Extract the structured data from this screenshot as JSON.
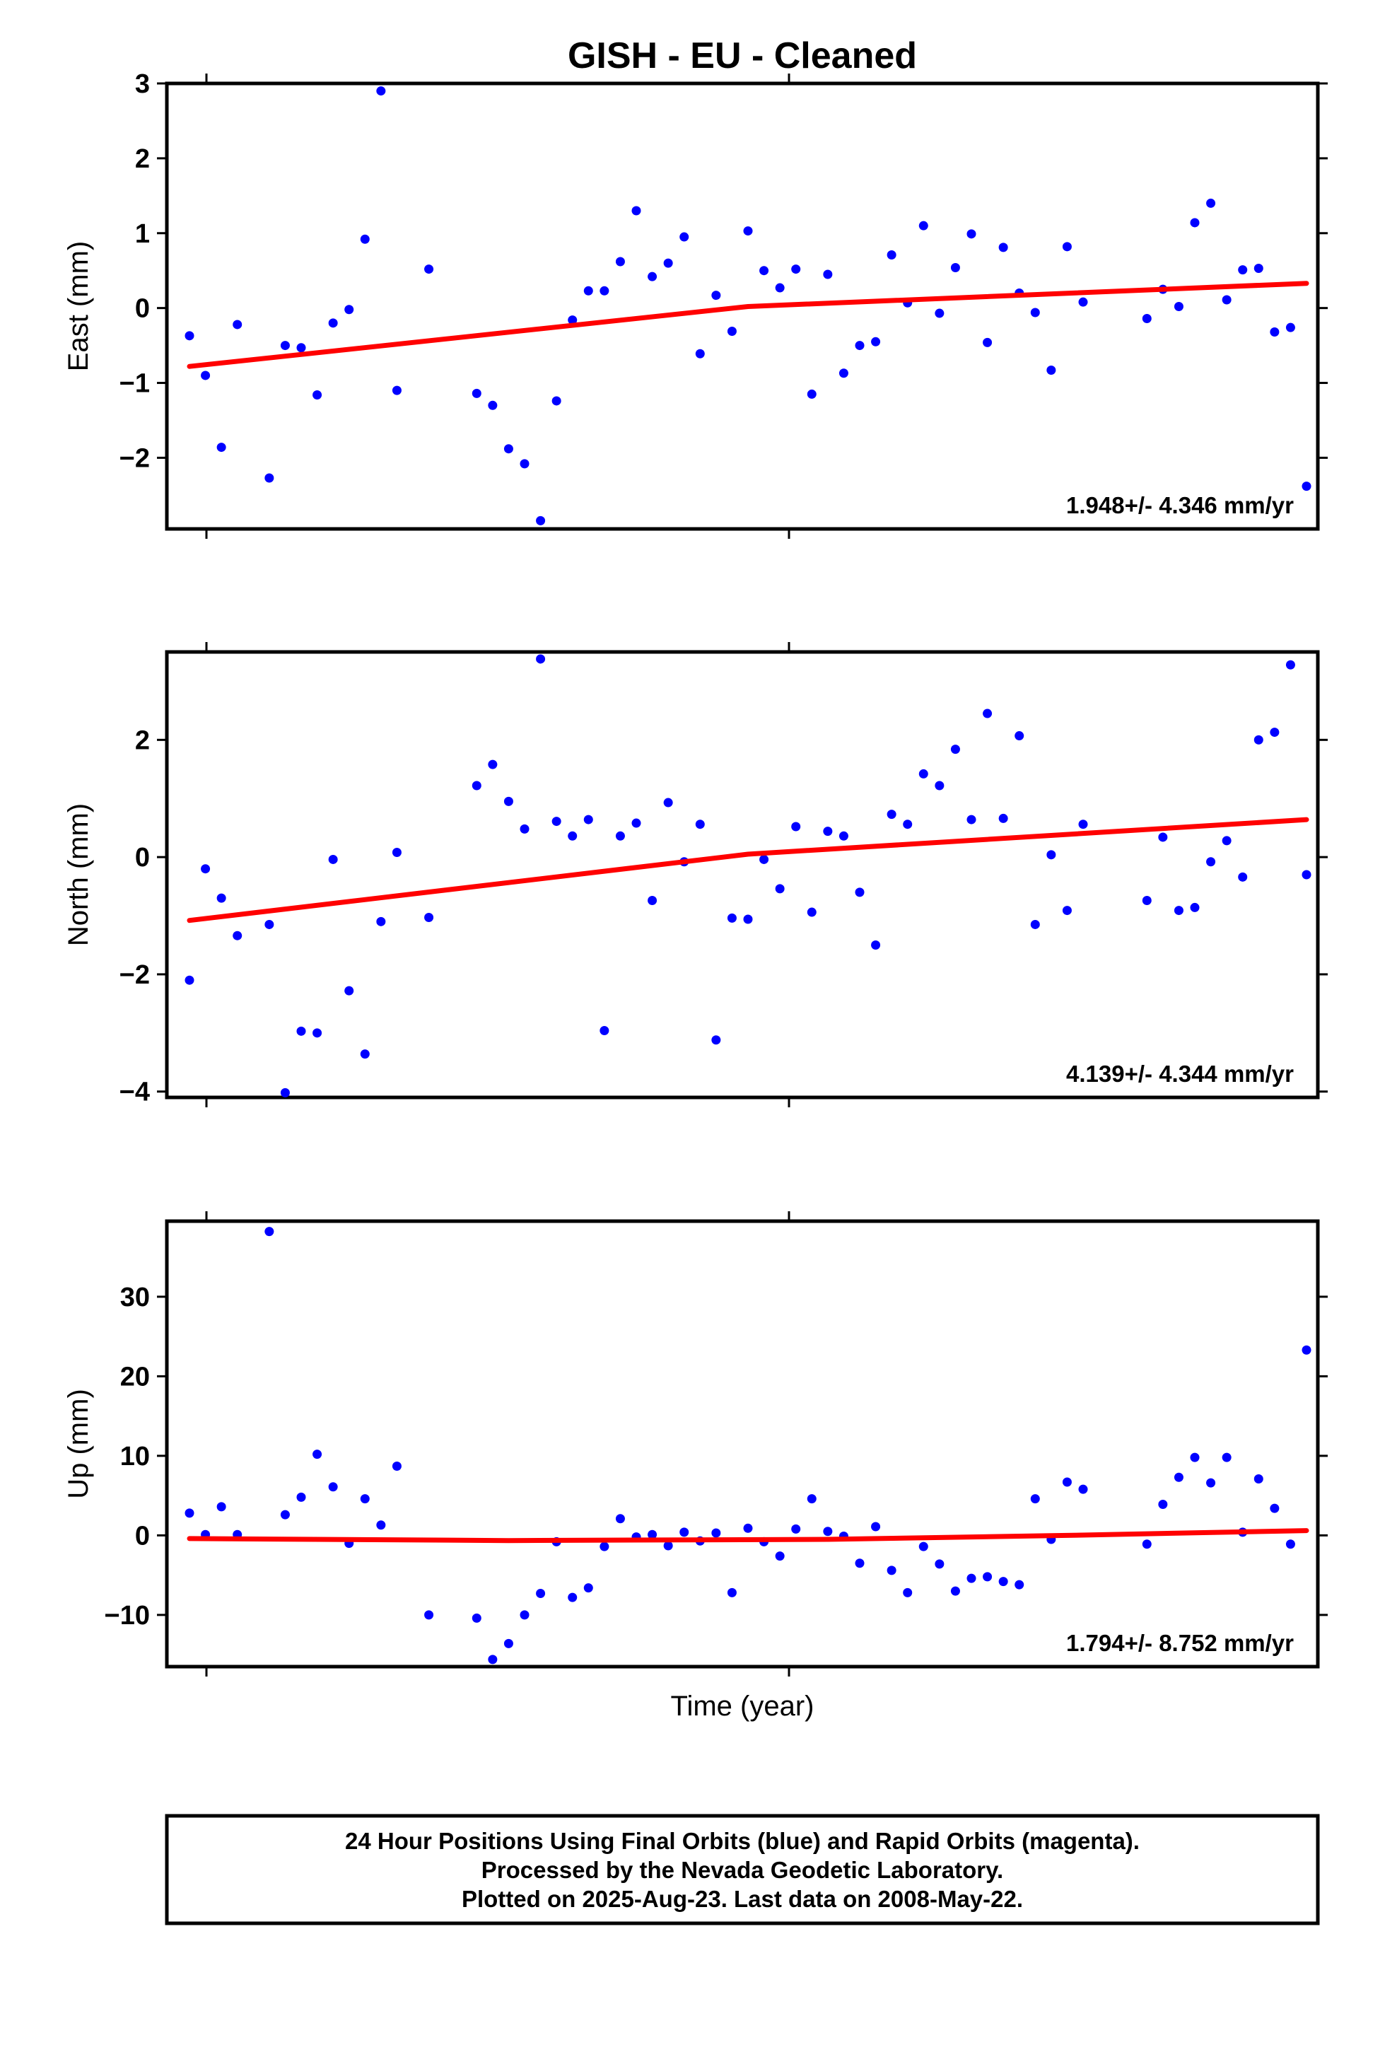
{
  "title": "GISH  - EU - Cleaned",
  "colors": {
    "points": "#0000ff",
    "trend": "#ff0000",
    "axes": "#000000"
  },
  "chart_data": [
    {
      "type": "scatter",
      "ylabel": "East (mm)",
      "ylim": [
        -2.95,
        3.0
      ],
      "yticks": [
        3,
        2,
        1,
        0,
        -1,
        -2
      ],
      "ytick_labels": [
        "3",
        "2",
        "1",
        "0",
        "−1",
        "−2"
      ],
      "rate_label": "1.948+/- 4.346 mm/yr",
      "points": [
        [
          0,
          -0.37
        ],
        [
          1,
          -0.9
        ],
        [
          2,
          -1.86
        ],
        [
          3,
          -0.22
        ],
        [
          5,
          -2.27
        ],
        [
          6,
          -0.5
        ],
        [
          7,
          -0.53
        ],
        [
          8,
          -1.16
        ],
        [
          9,
          -0.2
        ],
        [
          10,
          -0.02
        ],
        [
          11,
          0.92
        ],
        [
          12,
          2.9
        ],
        [
          13,
          -1.1
        ],
        [
          15,
          0.52
        ],
        [
          18,
          -1.14
        ],
        [
          19,
          -1.3
        ],
        [
          20,
          -1.88
        ],
        [
          21,
          -2.08
        ],
        [
          22,
          -2.84
        ],
        [
          23,
          -1.24
        ],
        [
          24,
          -0.16
        ],
        [
          25,
          0.23
        ],
        [
          26,
          0.23
        ],
        [
          27,
          0.62
        ],
        [
          28,
          1.3
        ],
        [
          29,
          0.42
        ],
        [
          30,
          0.6
        ],
        [
          31,
          0.95
        ],
        [
          32,
          -0.61
        ],
        [
          33,
          0.17
        ],
        [
          34,
          -0.31
        ],
        [
          35,
          1.03
        ],
        [
          36,
          0.5
        ],
        [
          37,
          0.27
        ],
        [
          38,
          0.52
        ],
        [
          39,
          -1.15
        ],
        [
          40,
          0.45
        ],
        [
          41,
          -0.87
        ],
        [
          42,
          -0.5
        ],
        [
          43,
          -0.45
        ],
        [
          44,
          0.71
        ],
        [
          45,
          0.07
        ],
        [
          46,
          1.1
        ],
        [
          47,
          -0.07
        ],
        [
          48,
          0.54
        ],
        [
          49,
          0.99
        ],
        [
          50,
          -0.46
        ],
        [
          51,
          0.81
        ],
        [
          52,
          0.2
        ],
        [
          53,
          -0.06
        ],
        [
          54,
          -0.83
        ],
        [
          55,
          0.82
        ],
        [
          56,
          0.08
        ],
        [
          60,
          -0.14
        ],
        [
          61,
          0.25
        ],
        [
          62,
          0.02
        ],
        [
          63,
          1.14
        ],
        [
          64,
          1.4
        ],
        [
          65,
          0.11
        ],
        [
          66,
          0.51
        ],
        [
          67,
          0.53
        ],
        [
          68,
          -0.32
        ],
        [
          69,
          -0.26
        ],
        [
          70,
          -2.38
        ]
      ],
      "trend": [
        [
          0,
          -0.78
        ],
        [
          35,
          0.02
        ],
        [
          70,
          0.33
        ]
      ]
    },
    {
      "type": "scatter",
      "ylabel": "North (mm)",
      "ylim": [
        -4.1,
        3.5
      ],
      "yticks": [
        2,
        0,
        -2,
        -4
      ],
      "ytick_labels": [
        "2",
        "0",
        "−2",
        "−4"
      ],
      "rate_label": "4.139+/- 4.344 mm/yr",
      "points": [
        [
          0,
          -2.1
        ],
        [
          1,
          -0.2
        ],
        [
          2,
          -0.7
        ],
        [
          3,
          -1.34
        ],
        [
          5,
          -1.15
        ],
        [
          6,
          -4.02
        ],
        [
          7,
          -2.97
        ],
        [
          8,
          -3.0
        ],
        [
          9,
          -0.04
        ],
        [
          10,
          -2.28
        ],
        [
          11,
          -3.36
        ],
        [
          12,
          -1.1
        ],
        [
          13,
          0.08
        ],
        [
          15,
          -1.03
        ],
        [
          18,
          1.22
        ],
        [
          19,
          1.58
        ],
        [
          20,
          0.95
        ],
        [
          21,
          0.48
        ],
        [
          22,
          3.38
        ],
        [
          23,
          0.61
        ],
        [
          24,
          0.36
        ],
        [
          25,
          0.64
        ],
        [
          26,
          -2.96
        ],
        [
          27,
          0.36
        ],
        [
          28,
          0.58
        ],
        [
          29,
          -0.74
        ],
        [
          30,
          0.93
        ],
        [
          31,
          -0.08
        ],
        [
          32,
          0.56
        ],
        [
          33,
          -3.12
        ],
        [
          34,
          -1.04
        ],
        [
          35,
          -1.06
        ],
        [
          36,
          -0.04
        ],
        [
          37,
          -0.54
        ],
        [
          38,
          0.52
        ],
        [
          39,
          -0.94
        ],
        [
          40,
          0.44
        ],
        [
          41,
          0.36
        ],
        [
          42,
          -0.6
        ],
        [
          43,
          -1.5
        ],
        [
          44,
          0.73
        ],
        [
          45,
          0.56
        ],
        [
          46,
          1.42
        ],
        [
          47,
          1.22
        ],
        [
          48,
          1.84
        ],
        [
          49,
          0.64
        ],
        [
          50,
          2.45
        ],
        [
          51,
          0.66
        ],
        [
          52,
          2.07
        ],
        [
          53,
          -1.15
        ],
        [
          54,
          0.04
        ],
        [
          55,
          -0.91
        ],
        [
          56,
          0.56
        ],
        [
          60,
          -0.74
        ],
        [
          61,
          0.34
        ],
        [
          62,
          -0.91
        ],
        [
          63,
          -0.86
        ],
        [
          64,
          -0.08
        ],
        [
          65,
          0.28
        ],
        [
          66,
          -0.34
        ],
        [
          67,
          2.0
        ],
        [
          68,
          2.13
        ],
        [
          69,
          3.28
        ],
        [
          70,
          -0.3
        ]
      ],
      "trend": [
        [
          0,
          -1.08
        ],
        [
          35,
          0.05
        ],
        [
          70,
          0.64
        ]
      ]
    },
    {
      "type": "scatter",
      "ylabel": "Up (mm)",
      "ylim": [
        -16.5,
        39.5
      ],
      "yticks": [
        30,
        20,
        10,
        0,
        -10
      ],
      "ytick_labels": [
        "30",
        "20",
        "10",
        "0",
        "−10"
      ],
      "rate_label": "1.794+/- 8.752 mm/yr",
      "points": [
        [
          0,
          2.8
        ],
        [
          1,
          0.1
        ],
        [
          2,
          3.6
        ],
        [
          3,
          0.1
        ],
        [
          5,
          38.2
        ],
        [
          6,
          2.6
        ],
        [
          7,
          4.8
        ],
        [
          8,
          10.2
        ],
        [
          9,
          6.1
        ],
        [
          10,
          -1.0
        ],
        [
          11,
          4.6
        ],
        [
          12,
          1.3
        ],
        [
          13,
          8.7
        ],
        [
          15,
          -10.0
        ],
        [
          18,
          -10.4
        ],
        [
          19,
          -15.6
        ],
        [
          20,
          -13.6
        ],
        [
          21,
          -10.0
        ],
        [
          22,
          -7.3
        ],
        [
          23,
          -0.8
        ],
        [
          24,
          -7.8
        ],
        [
          25,
          -6.6
        ],
        [
          26,
          -1.4
        ],
        [
          27,
          2.1
        ],
        [
          28,
          -0.2
        ],
        [
          29,
          0.1
        ],
        [
          30,
          -1.3
        ],
        [
          31,
          0.4
        ],
        [
          32,
          -0.7
        ],
        [
          33,
          0.3
        ],
        [
          34,
          -7.2
        ],
        [
          35,
          0.9
        ],
        [
          36,
          -0.8
        ],
        [
          37,
          -2.6
        ],
        [
          38,
          0.8
        ],
        [
          39,
          4.6
        ],
        [
          40,
          0.5
        ],
        [
          41,
          -0.1
        ],
        [
          42,
          -3.5
        ],
        [
          43,
          1.1
        ],
        [
          44,
          -4.4
        ],
        [
          45,
          -7.2
        ],
        [
          46,
          -1.4
        ],
        [
          47,
          -3.6
        ],
        [
          48,
          -7.0
        ],
        [
          49,
          -5.4
        ],
        [
          50,
          -5.2
        ],
        [
          51,
          -5.8
        ],
        [
          52,
          -6.2
        ],
        [
          53,
          4.6
        ],
        [
          54,
          -0.5
        ],
        [
          55,
          6.7
        ],
        [
          56,
          5.8
        ],
        [
          60,
          -1.1
        ],
        [
          61,
          3.9
        ],
        [
          62,
          7.3
        ],
        [
          63,
          9.8
        ],
        [
          64,
          6.6
        ],
        [
          65,
          9.8
        ],
        [
          66,
          0.4
        ],
        [
          67,
          7.1
        ],
        [
          68,
          3.4
        ],
        [
          69,
          -1.1
        ],
        [
          70,
          23.3
        ]
      ],
      "trend": [
        [
          0,
          -0.4
        ],
        [
          20,
          -0.65
        ],
        [
          40,
          -0.5
        ],
        [
          55,
          0.0
        ],
        [
          70,
          0.6
        ]
      ]
    }
  ],
  "x_axis": {
    "label": "Time (year)"
  },
  "footer": {
    "line1": "24 Hour Positions Using Final Orbits (blue) and Rapid Orbits (magenta).",
    "line2": "Processed by the Nevada Geodetic Laboratory.",
    "line3": "Plotted on 2025-Aug-23. Last data on 2008-May-22."
  }
}
